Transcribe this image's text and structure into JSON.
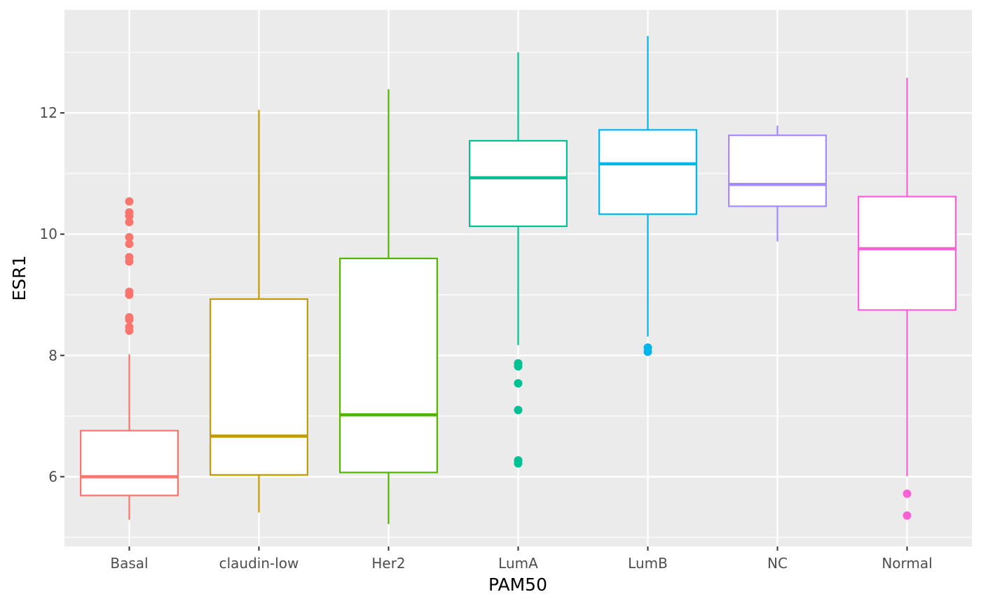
{
  "chart_data": {
    "type": "box",
    "xlabel": "PAM50",
    "ylabel": "ESR1",
    "ylim": [
      4.85,
      13.7
    ],
    "y_ticks": [
      6,
      8,
      10,
      12
    ],
    "grid": true,
    "legend": "none",
    "background": "#EBEBEB",
    "categories": [
      "Basal",
      "claudin-low",
      "Her2",
      "LumA",
      "LumB",
      "NC",
      "Normal"
    ],
    "boxes": [
      {
        "category": "Basal",
        "color": "#F8766D",
        "whisker_low": 5.29,
        "q1": 5.69,
        "median": 6.0,
        "q3": 6.76,
        "whisker_high": 8.02,
        "outliers": [
          8.41,
          8.47,
          8.59,
          8.63,
          9.0,
          9.05,
          9.55,
          9.62,
          9.84,
          9.95,
          10.2,
          10.3,
          10.36,
          10.54
        ]
      },
      {
        "category": "claudin-low",
        "color": "#C49A00",
        "whisker_low": 5.41,
        "q1": 6.03,
        "median": 6.67,
        "q3": 8.93,
        "whisker_high": 12.05,
        "outliers": []
      },
      {
        "category": "Her2",
        "color": "#53B400",
        "whisker_low": 5.22,
        "q1": 6.07,
        "median": 7.02,
        "q3": 9.6,
        "whisker_high": 12.39,
        "outliers": []
      },
      {
        "category": "LumA",
        "color": "#00C094",
        "whisker_low": 8.17,
        "q1": 10.13,
        "median": 10.93,
        "q3": 11.54,
        "whisker_high": 13.0,
        "outliers": [
          6.22,
          6.27,
          7.1,
          7.54,
          7.82,
          7.87
        ]
      },
      {
        "category": "LumB",
        "color": "#00B6EB",
        "whisker_low": 8.31,
        "q1": 10.33,
        "median": 11.16,
        "q3": 11.72,
        "whisker_high": 13.27,
        "outliers": [
          8.06,
          8.13
        ]
      },
      {
        "category": "NC",
        "color": "#A58AFF",
        "whisker_low": 9.88,
        "q1": 10.46,
        "median": 10.82,
        "q3": 11.63,
        "whisker_high": 11.79,
        "outliers": []
      },
      {
        "category": "Normal",
        "color": "#FB61D7",
        "whisker_low": 6.01,
        "q1": 8.75,
        "median": 9.76,
        "q3": 10.62,
        "whisker_high": 12.58,
        "outliers": [
          5.36,
          5.72
        ]
      }
    ]
  }
}
